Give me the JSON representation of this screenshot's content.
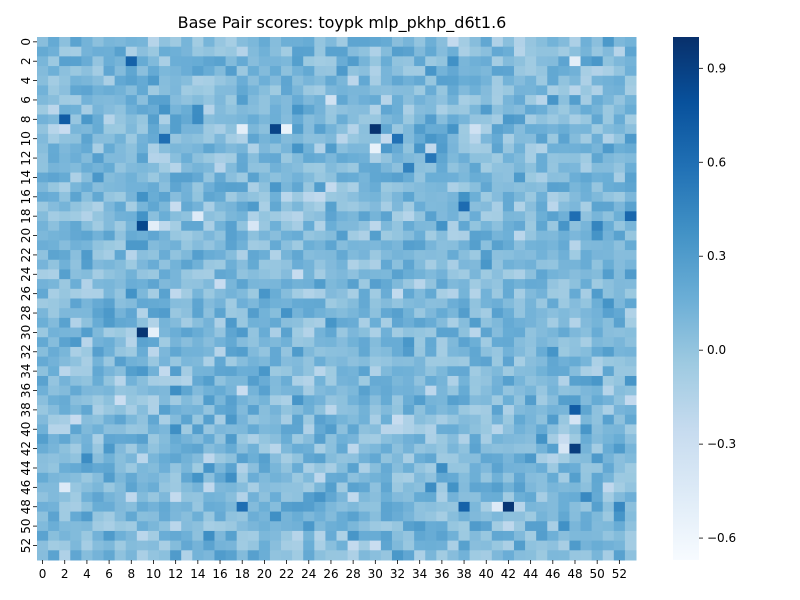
{
  "chart_data": {
    "type": "heatmap",
    "title": "Base Pair scores: toypk mlp_pkhp_d6t1.6",
    "xlabel": "",
    "ylabel": "",
    "rows": 54,
    "cols": 54,
    "x_tick_labels": [
      "0",
      "2",
      "4",
      "6",
      "8",
      "10",
      "12",
      "14",
      "16",
      "18",
      "20",
      "22",
      "24",
      "26",
      "28",
      "30",
      "32",
      "34",
      "36",
      "38",
      "40",
      "42",
      "44",
      "46",
      "48",
      "50",
      "52"
    ],
    "y_tick_labels": [
      "0",
      "2",
      "4",
      "6",
      "8",
      "10",
      "12",
      "14",
      "16",
      "18",
      "20",
      "22",
      "24",
      "26",
      "28",
      "30",
      "32",
      "34",
      "36",
      "38",
      "40",
      "42",
      "44",
      "46",
      "48",
      "50",
      "52"
    ],
    "colorbar": {
      "cmap": "Blues",
      "vmin": -0.67,
      "vmax": 1.0,
      "tick_values": [
        -0.6,
        -0.3,
        0.0,
        0.3,
        0.6,
        0.9
      ],
      "tick_labels": [
        "−0.6",
        "−0.3",
        "0.0",
        "0.3",
        "0.6",
        "0.9"
      ]
    },
    "value_distribution": {
      "note_free": true,
      "typical_range": [
        -0.25,
        0.45
      ],
      "mean": 0.08,
      "sd": 0.12
    },
    "notable_cells": [
      {
        "row": 8,
        "col": 2,
        "value": 0.72
      },
      {
        "row": 9,
        "col": 21,
        "value": 0.88
      },
      {
        "row": 9,
        "col": 30,
        "value": 0.98
      },
      {
        "row": 19,
        "col": 9,
        "value": 0.85
      },
      {
        "row": 30,
        "col": 9,
        "value": 0.96
      },
      {
        "row": 42,
        "col": 48,
        "value": 0.92
      },
      {
        "row": 48,
        "col": 42,
        "value": 0.96
      },
      {
        "row": 2,
        "col": 8,
        "value": 0.68
      },
      {
        "row": 18,
        "col": 53,
        "value": 0.65
      },
      {
        "row": 38,
        "col": 48,
        "value": 0.72
      },
      {
        "row": 48,
        "col": 38,
        "value": 0.68
      },
      {
        "row": 48,
        "col": 18,
        "value": 0.6
      },
      {
        "row": 17,
        "col": 38,
        "value": 0.62
      },
      {
        "row": 12,
        "col": 35,
        "value": 0.55
      },
      {
        "row": 10,
        "col": 11,
        "value": 0.6
      },
      {
        "row": 10,
        "col": 32,
        "value": 0.58
      },
      {
        "row": 18,
        "col": 48,
        "value": 0.6
      },
      {
        "row": 9,
        "col": 22,
        "value": -0.55
      },
      {
        "row": 9,
        "col": 18,
        "value": -0.5
      },
      {
        "row": 30,
        "col": 10,
        "value": -0.52
      },
      {
        "row": 19,
        "col": 10,
        "value": -0.5
      },
      {
        "row": 48,
        "col": 41,
        "value": -0.45
      },
      {
        "row": 42,
        "col": 47,
        "value": -0.4
      },
      {
        "row": 11,
        "col": 30,
        "value": -0.55
      },
      {
        "row": 2,
        "col": 48,
        "value": -0.5
      },
      {
        "row": 18,
        "col": 14,
        "value": -0.45
      },
      {
        "row": 46,
        "col": 2,
        "value": -0.45
      }
    ]
  }
}
